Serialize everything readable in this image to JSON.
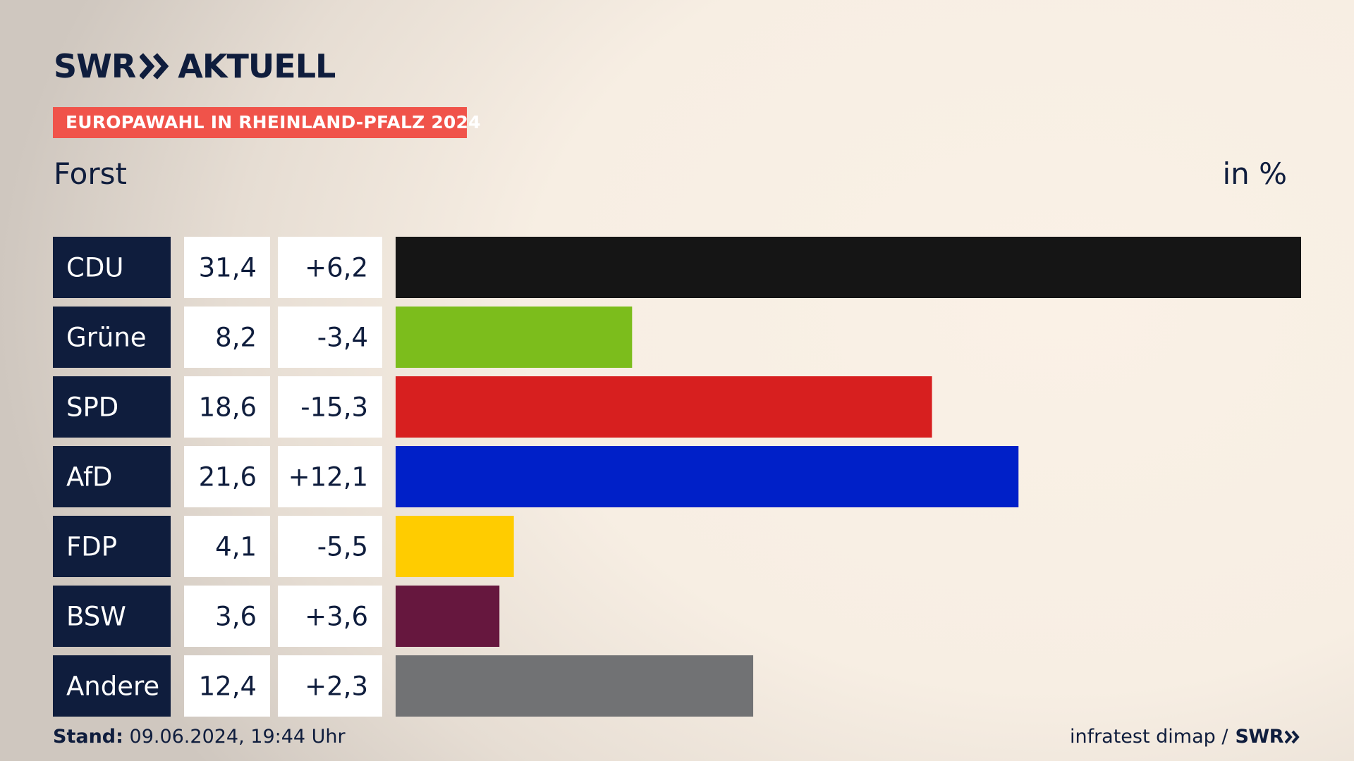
{
  "header": {
    "brand": "SWR",
    "brand_suffix": "AKTUELL",
    "tag": "EUROPAWAHL IN RHEINLAND-PFALZ 2024",
    "region": "Forst",
    "unit": "in %"
  },
  "footer": {
    "stand_label": "Stand:",
    "stand_value": "09.06.2024, 19:44 Uhr",
    "source": "infratest dimap /",
    "source_brand": "SWR"
  },
  "chart_data": {
    "type": "bar",
    "orientation": "horizontal",
    "xlim": [
      0,
      31.4
    ],
    "categories": [
      "CDU",
      "Grüne",
      "SPD",
      "AfD",
      "FDP",
      "BSW",
      "Andere"
    ],
    "values": [
      31.4,
      8.2,
      18.6,
      21.6,
      4.1,
      3.6,
      12.4
    ],
    "value_labels": [
      "31,4",
      "8,2",
      "18,6",
      "21,6",
      "4,1",
      "3,6",
      "12,4"
    ],
    "change_labels": [
      "+6,2",
      "-3,4",
      "-15,3",
      "+12,1",
      "-5,5",
      "+3,6",
      "+2,3"
    ],
    "colors": [
      "#151515",
      "#7cbd1c",
      "#d71f1f",
      "#0020c8",
      "#ffcc00",
      "#66173e",
      "#717274"
    ]
  },
  "colors": {
    "navy": "#0f1d3d",
    "tag_red": "#f0534a",
    "cell_white": "#ffffff"
  }
}
